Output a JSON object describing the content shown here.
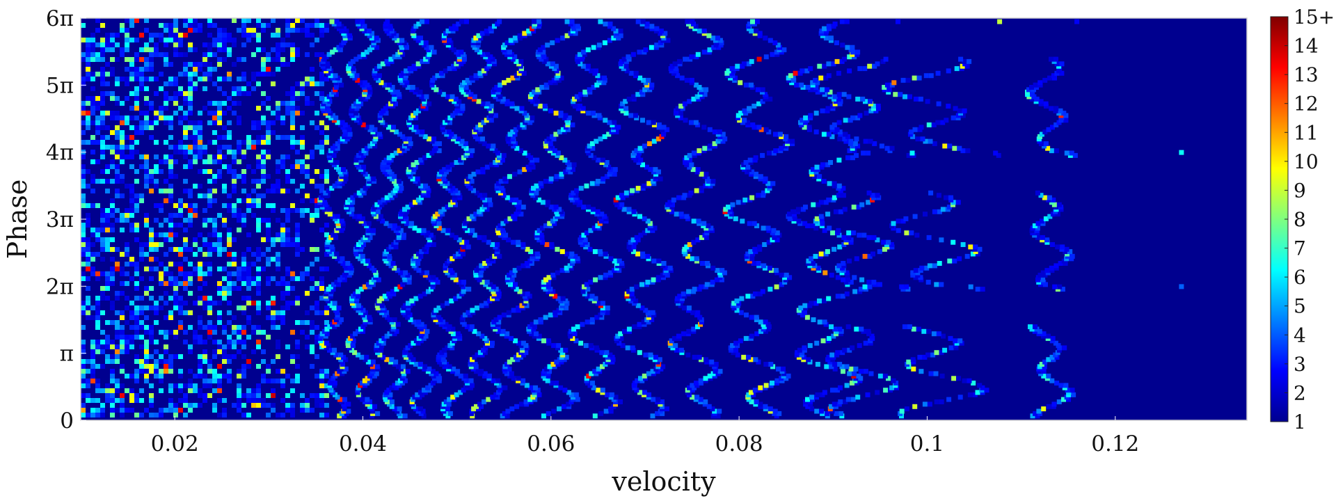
{
  "chart_data": {
    "type": "heatmap",
    "title": "",
    "xlabel": "velocity",
    "ylabel": "Phase",
    "xlim": [
      0.01,
      0.134
    ],
    "ylim": [
      0,
      18.85
    ],
    "x_ticks": [
      {
        "value": 0.02,
        "label": "0.02"
      },
      {
        "value": 0.04,
        "label": "0.04"
      },
      {
        "value": 0.06,
        "label": "0.06"
      },
      {
        "value": 0.08,
        "label": "0.08"
      },
      {
        "value": 0.1,
        "label": "0.1"
      },
      {
        "value": 0.12,
        "label": "0.12"
      }
    ],
    "y_ticks": [
      {
        "value": 0,
        "label": "0"
      },
      {
        "value": 3.1416,
        "label": "π"
      },
      {
        "value": 6.2832,
        "label": "2π"
      },
      {
        "value": 9.4248,
        "label": "3π"
      },
      {
        "value": 12.5664,
        "label": "4π"
      },
      {
        "value": 15.708,
        "label": "5π"
      },
      {
        "value": 18.8496,
        "label": "6π"
      }
    ],
    "colorbar": {
      "min": 1,
      "max": 15,
      "colormap": "jet",
      "ticks": [
        {
          "value": 1,
          "label": "1"
        },
        {
          "value": 2,
          "label": "2"
        },
        {
          "value": 3,
          "label": "3"
        },
        {
          "value": 4,
          "label": "4"
        },
        {
          "value": 5,
          "label": "5"
        },
        {
          "value": 6,
          "label": "6"
        },
        {
          "value": 7,
          "label": "7"
        },
        {
          "value": 8,
          "label": "8"
        },
        {
          "value": 9,
          "label": "9"
        },
        {
          "value": 10,
          "label": "10"
        },
        {
          "value": 11,
          "label": "11"
        },
        {
          "value": 12,
          "label": "12"
        },
        {
          "value": 13,
          "label": "13"
        },
        {
          "value": 14,
          "label": "14"
        },
        {
          "value": 15,
          "label": "15+"
        }
      ]
    },
    "background_color": "#00008f",
    "stripes": [
      {
        "velocity": 0.0368,
        "amplitude": 0.0009
      },
      {
        "velocity": 0.0398,
        "amplitude": 0.001
      },
      {
        "velocity": 0.0428,
        "amplitude": 0.0011
      },
      {
        "velocity": 0.0458,
        "amplitude": 0.0012
      },
      {
        "velocity": 0.0492,
        "amplitude": 0.0012
      },
      {
        "velocity": 0.0525,
        "amplitude": 0.0013
      },
      {
        "velocity": 0.056,
        "amplitude": 0.0014
      },
      {
        "velocity": 0.06,
        "amplitude": 0.0015
      },
      {
        "velocity": 0.0645,
        "amplitude": 0.0016
      },
      {
        "velocity": 0.0695,
        "amplitude": 0.0017
      },
      {
        "velocity": 0.0752,
        "amplitude": 0.0018
      },
      {
        "velocity": 0.0818,
        "amplitude": 0.0021
      },
      {
        "velocity": 0.089,
        "amplitude": 0.0025
      },
      {
        "velocity": 0.0925,
        "amplitude": 0.003
      },
      {
        "velocity": 0.101,
        "amplitude": 0.0035
      },
      {
        "velocity": 0.113,
        "amplitude": 0.0015
      },
      {
        "velocity": 0.127,
        "amplitude": 0.0001
      }
    ]
  }
}
